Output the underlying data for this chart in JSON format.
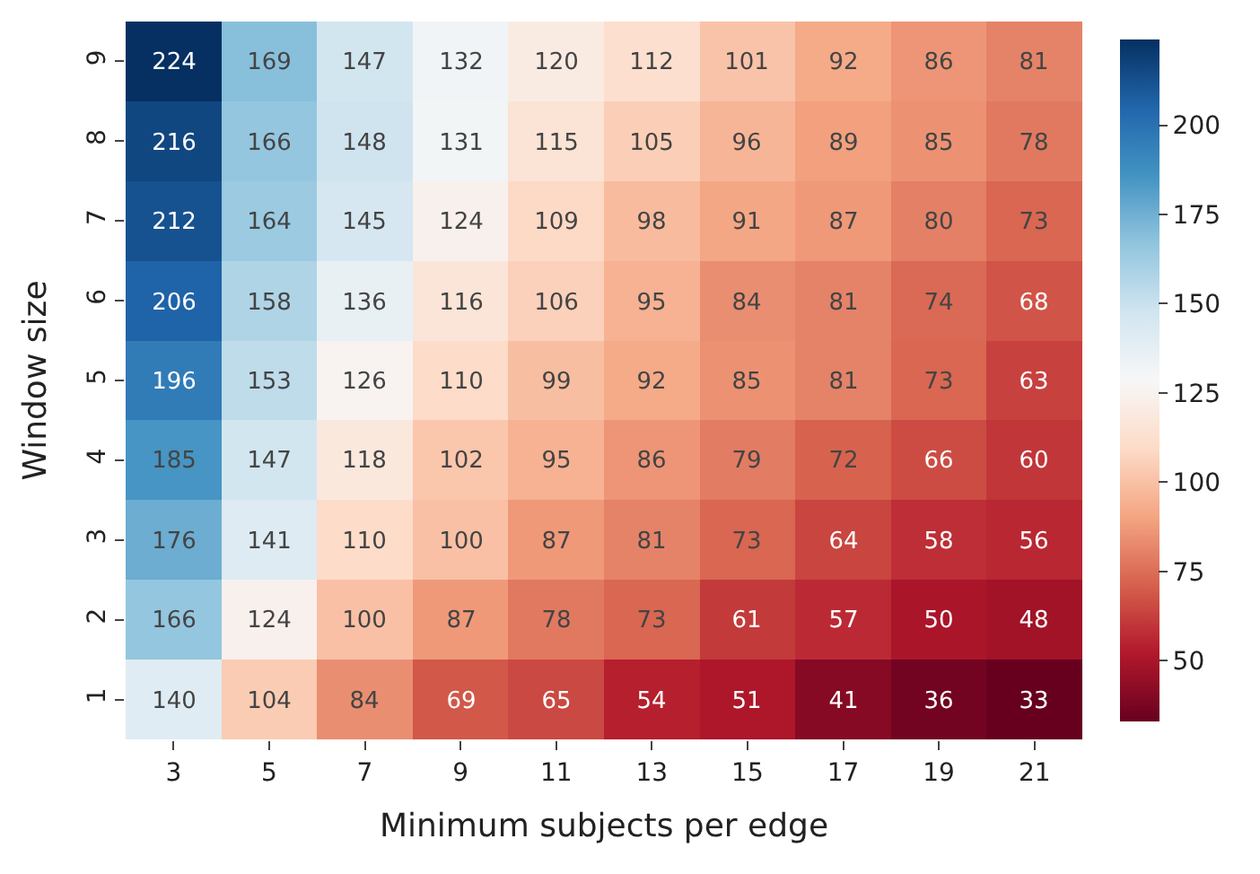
{
  "chart_data": {
    "type": "heatmap",
    "xlabel": "Minimum subjects per edge",
    "ylabel": "Window size",
    "categories": [
      "3",
      "5",
      "7",
      "9",
      "11",
      "13",
      "15",
      "17",
      "19",
      "21"
    ],
    "y_categories": [
      "9",
      "8",
      "7",
      "6",
      "5",
      "4",
      "3",
      "2",
      "1"
    ],
    "cells": [
      [
        224,
        169,
        147,
        132,
        120,
        112,
        101,
        92,
        86,
        81
      ],
      [
        216,
        166,
        148,
        131,
        115,
        105,
        96,
        89,
        85,
        78
      ],
      [
        212,
        164,
        145,
        124,
        109,
        98,
        91,
        87,
        80,
        73
      ],
      [
        206,
        158,
        136,
        116,
        106,
        95,
        84,
        81,
        74,
        68
      ],
      [
        196,
        153,
        126,
        110,
        99,
        92,
        85,
        81,
        73,
        63
      ],
      [
        185,
        147,
        118,
        102,
        95,
        86,
        79,
        72,
        66,
        60
      ],
      [
        176,
        141,
        110,
        100,
        87,
        81,
        73,
        64,
        58,
        56
      ],
      [
        166,
        124,
        100,
        87,
        78,
        73,
        61,
        57,
        50,
        48
      ],
      [
        140,
        104,
        84,
        69,
        65,
        54,
        51,
        41,
        36,
        33
      ]
    ],
    "clim": [
      33,
      224
    ],
    "cticks": [
      50,
      75,
      100,
      125,
      150,
      175,
      200
    ],
    "data_labels": true
  }
}
